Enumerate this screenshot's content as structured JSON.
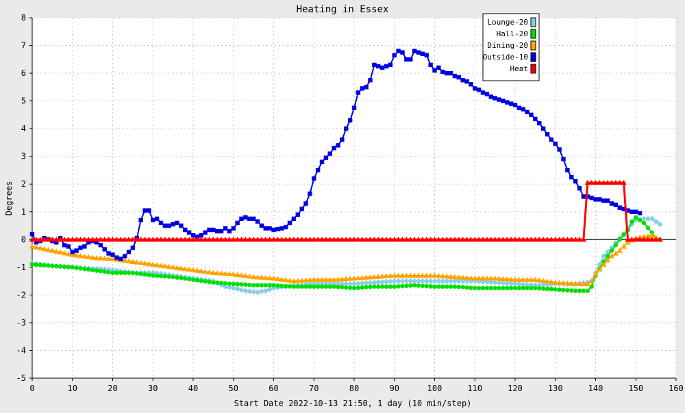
{
  "chart_data": {
    "type": "line",
    "title": "Heating in Essex",
    "xlabel": "Start Date 2022-10-13 21:50, 1 day (10 min/step)",
    "ylabel": "Degrees",
    "xlim": [
      0,
      160
    ],
    "ylim": [
      -5,
      8
    ],
    "xticks": [
      0,
      10,
      20,
      30,
      40,
      50,
      60,
      70,
      80,
      90,
      100,
      110,
      120,
      130,
      140,
      150,
      160
    ],
    "yticks": [
      -5,
      -4,
      -3,
      -2,
      -1,
      0,
      1,
      2,
      3,
      4,
      5,
      6,
      7,
      8
    ],
    "grid": true,
    "legend_position": "top-right",
    "background_color": "#eaeaea",
    "plot_background": "#ffffff",
    "series": [
      {
        "name": "Lounge-20",
        "color": "#87ceeb",
        "marker": "diamond",
        "points": [
          [
            0,
            -0.85
          ],
          [
            5,
            -0.95
          ],
          [
            10,
            -1.0
          ],
          [
            15,
            -1.05
          ],
          [
            20,
            -1.1
          ],
          [
            25,
            -1.2
          ],
          [
            30,
            -1.2
          ],
          [
            35,
            -1.3
          ],
          [
            40,
            -1.4
          ],
          [
            45,
            -1.5
          ],
          [
            48,
            -1.7
          ],
          [
            50,
            -1.75
          ],
          [
            53,
            -1.85
          ],
          [
            56,
            -1.9
          ],
          [
            58,
            -1.85
          ],
          [
            60,
            -1.75
          ],
          [
            63,
            -1.7
          ],
          [
            66,
            -1.65
          ],
          [
            70,
            -1.6
          ],
          [
            75,
            -1.6
          ],
          [
            80,
            -1.6
          ],
          [
            85,
            -1.55
          ],
          [
            90,
            -1.5
          ],
          [
            95,
            -1.5
          ],
          [
            100,
            -1.5
          ],
          [
            105,
            -1.5
          ],
          [
            110,
            -1.5
          ],
          [
            115,
            -1.55
          ],
          [
            120,
            -1.6
          ],
          [
            125,
            -1.65
          ],
          [
            130,
            -1.6
          ],
          [
            135,
            -1.6
          ],
          [
            138,
            -1.55
          ],
          [
            139,
            -1.5
          ],
          [
            140,
            -1.2
          ],
          [
            142,
            -0.6
          ],
          [
            144,
            -0.3
          ],
          [
            146,
            0.05
          ],
          [
            148,
            0.35
          ],
          [
            149,
            0.55
          ],
          [
            150,
            0.7
          ],
          [
            152,
            0.75
          ],
          [
            154,
            0.75
          ],
          [
            156,
            0.55
          ]
        ]
      },
      {
        "name": "Hall-20",
        "color": "#00e000",
        "marker": "circle",
        "points": [
          [
            0,
            -0.9
          ],
          [
            5,
            -0.95
          ],
          [
            10,
            -1.0
          ],
          [
            15,
            -1.1
          ],
          [
            20,
            -1.2
          ],
          [
            25,
            -1.2
          ],
          [
            30,
            -1.3
          ],
          [
            35,
            -1.35
          ],
          [
            40,
            -1.45
          ],
          [
            45,
            -1.55
          ],
          [
            50,
            -1.6
          ],
          [
            55,
            -1.65
          ],
          [
            60,
            -1.65
          ],
          [
            65,
            -1.7
          ],
          [
            70,
            -1.7
          ],
          [
            75,
            -1.7
          ],
          [
            80,
            -1.75
          ],
          [
            85,
            -1.7
          ],
          [
            90,
            -1.7
          ],
          [
            95,
            -1.65
          ],
          [
            100,
            -1.7
          ],
          [
            105,
            -1.7
          ],
          [
            110,
            -1.75
          ],
          [
            115,
            -1.75
          ],
          [
            120,
            -1.75
          ],
          [
            125,
            -1.75
          ],
          [
            130,
            -1.8
          ],
          [
            135,
            -1.85
          ],
          [
            138,
            -1.85
          ],
          [
            139,
            -1.7
          ],
          [
            140,
            -1.3
          ],
          [
            142,
            -0.8
          ],
          [
            144,
            -0.4
          ],
          [
            146,
            0.0
          ],
          [
            148,
            0.35
          ],
          [
            149,
            0.65
          ],
          [
            150,
            0.8
          ],
          [
            152,
            0.6
          ],
          [
            154,
            0.25
          ],
          [
            155,
            0.05
          ],
          [
            156,
            0.0
          ]
        ]
      },
      {
        "name": "Dining-20",
        "color": "#ffa500",
        "marker": "triangle",
        "points": [
          [
            0,
            -0.25
          ],
          [
            5,
            -0.4
          ],
          [
            10,
            -0.55
          ],
          [
            15,
            -0.65
          ],
          [
            20,
            -0.7
          ],
          [
            25,
            -0.8
          ],
          [
            30,
            -0.9
          ],
          [
            35,
            -1.0
          ],
          [
            40,
            -1.1
          ],
          [
            45,
            -1.2
          ],
          [
            50,
            -1.25
          ],
          [
            55,
            -1.35
          ],
          [
            60,
            -1.4
          ],
          [
            65,
            -1.5
          ],
          [
            70,
            -1.45
          ],
          [
            75,
            -1.45
          ],
          [
            80,
            -1.4
          ],
          [
            85,
            -1.35
          ],
          [
            90,
            -1.3
          ],
          [
            95,
            -1.3
          ],
          [
            100,
            -1.3
          ],
          [
            105,
            -1.35
          ],
          [
            110,
            -1.4
          ],
          [
            115,
            -1.4
          ],
          [
            120,
            -1.45
          ],
          [
            125,
            -1.45
          ],
          [
            130,
            -1.55
          ],
          [
            135,
            -1.6
          ],
          [
            138,
            -1.6
          ],
          [
            139,
            -1.5
          ],
          [
            140,
            -1.25
          ],
          [
            142,
            -0.9
          ],
          [
            144,
            -0.6
          ],
          [
            146,
            -0.4
          ],
          [
            148,
            -0.1
          ],
          [
            150,
            0.05
          ],
          [
            152,
            0.1
          ],
          [
            154,
            0.15
          ],
          [
            156,
            0.0
          ]
        ]
      },
      {
        "name": "Outside-10",
        "color": "#0000e0",
        "marker": "square",
        "points": [
          [
            0,
            0.2
          ],
          [
            1,
            -0.1
          ],
          [
            2,
            -0.05
          ],
          [
            3,
            0.05
          ],
          [
            4,
            0.0
          ],
          [
            5,
            -0.05
          ],
          [
            6,
            -0.1
          ],
          [
            7,
            0.05
          ],
          [
            8,
            -0.2
          ],
          [
            9,
            -0.25
          ],
          [
            10,
            -0.45
          ],
          [
            11,
            -0.4
          ],
          [
            12,
            -0.3
          ],
          [
            13,
            -0.25
          ],
          [
            14,
            -0.1
          ],
          [
            15,
            -0.05
          ],
          [
            16,
            -0.1
          ],
          [
            17,
            -0.2
          ],
          [
            18,
            -0.35
          ],
          [
            19,
            -0.5
          ],
          [
            20,
            -0.55
          ],
          [
            21,
            -0.65
          ],
          [
            22,
            -0.7
          ],
          [
            23,
            -0.6
          ],
          [
            24,
            -0.45
          ],
          [
            25,
            -0.3
          ],
          [
            26,
            0.05
          ],
          [
            27,
            0.7
          ],
          [
            28,
            1.05
          ],
          [
            29,
            1.05
          ],
          [
            30,
            0.7
          ],
          [
            31,
            0.75
          ],
          [
            32,
            0.6
          ],
          [
            33,
            0.5
          ],
          [
            34,
            0.5
          ],
          [
            35,
            0.55
          ],
          [
            36,
            0.6
          ],
          [
            37,
            0.5
          ],
          [
            38,
            0.35
          ],
          [
            39,
            0.25
          ],
          [
            40,
            0.15
          ],
          [
            41,
            0.1
          ],
          [
            42,
            0.15
          ],
          [
            43,
            0.25
          ],
          [
            44,
            0.35
          ],
          [
            45,
            0.35
          ],
          [
            46,
            0.3
          ],
          [
            47,
            0.3
          ],
          [
            48,
            0.4
          ],
          [
            49,
            0.3
          ],
          [
            50,
            0.4
          ],
          [
            51,
            0.6
          ],
          [
            52,
            0.75
          ],
          [
            53,
            0.8
          ],
          [
            54,
            0.75
          ],
          [
            55,
            0.75
          ],
          [
            56,
            0.65
          ],
          [
            57,
            0.5
          ],
          [
            58,
            0.4
          ],
          [
            59,
            0.4
          ],
          [
            60,
            0.35
          ],
          [
            62,
            0.4
          ],
          [
            63,
            0.45
          ],
          [
            64,
            0.6
          ],
          [
            65,
            0.75
          ],
          [
            66,
            0.9
          ],
          [
            67,
            1.1
          ],
          [
            68,
            1.3
          ],
          [
            69,
            1.65
          ],
          [
            70,
            2.2
          ],
          [
            71,
            2.5
          ],
          [
            72,
            2.8
          ],
          [
            73,
            2.95
          ],
          [
            74,
            3.1
          ],
          [
            75,
            3.3
          ],
          [
            76,
            3.4
          ],
          [
            77,
            3.6
          ],
          [
            78,
            4.0
          ],
          [
            79,
            4.3
          ],
          [
            80,
            4.75
          ],
          [
            81,
            5.3
          ],
          [
            82,
            5.45
          ],
          [
            83,
            5.5
          ],
          [
            84,
            5.75
          ],
          [
            85,
            6.3
          ],
          [
            86,
            6.25
          ],
          [
            87,
            6.2
          ],
          [
            88,
            6.25
          ],
          [
            89,
            6.3
          ],
          [
            90,
            6.65
          ],
          [
            91,
            6.8
          ],
          [
            92,
            6.75
          ],
          [
            93,
            6.5
          ],
          [
            94,
            6.5
          ],
          [
            95,
            6.8
          ],
          [
            96,
            6.75
          ],
          [
            97,
            6.7
          ],
          [
            98,
            6.65
          ],
          [
            99,
            6.3
          ],
          [
            100,
            6.1
          ],
          [
            101,
            6.2
          ],
          [
            102,
            6.05
          ],
          [
            103,
            6.0
          ],
          [
            104,
            6.0
          ],
          [
            105,
            5.9
          ],
          [
            106,
            5.85
          ],
          [
            107,
            5.75
          ],
          [
            108,
            5.7
          ],
          [
            109,
            5.6
          ],
          [
            110,
            5.45
          ],
          [
            111,
            5.4
          ],
          [
            112,
            5.3
          ],
          [
            113,
            5.25
          ],
          [
            114,
            5.15
          ],
          [
            115,
            5.1
          ],
          [
            116,
            5.05
          ],
          [
            117,
            5.0
          ],
          [
            118,
            4.95
          ],
          [
            119,
            4.9
          ],
          [
            120,
            4.85
          ],
          [
            121,
            4.75
          ],
          [
            122,
            4.7
          ],
          [
            123,
            4.6
          ],
          [
            124,
            4.5
          ],
          [
            125,
            4.35
          ],
          [
            126,
            4.2
          ],
          [
            127,
            4.0
          ],
          [
            128,
            3.8
          ],
          [
            129,
            3.6
          ],
          [
            130,
            3.45
          ],
          [
            131,
            3.25
          ],
          [
            132,
            2.9
          ],
          [
            133,
            2.5
          ],
          [
            134,
            2.25
          ],
          [
            135,
            2.1
          ],
          [
            136,
            1.85
          ],
          [
            137,
            1.55
          ],
          [
            138,
            1.55
          ],
          [
            139,
            1.5
          ],
          [
            140,
            1.45
          ],
          [
            141,
            1.45
          ],
          [
            142,
            1.4
          ],
          [
            143,
            1.4
          ],
          [
            144,
            1.3
          ],
          [
            145,
            1.25
          ],
          [
            146,
            1.15
          ],
          [
            147,
            1.1
          ],
          [
            148,
            1.05
          ],
          [
            149,
            1.0
          ],
          [
            150,
            1.0
          ],
          [
            151,
            0.95
          ]
        ]
      },
      {
        "name": "Heat",
        "color": "#ff0000",
        "marker": "triangle",
        "points": [
          [
            0,
            0
          ],
          [
            137,
            0
          ],
          [
            138,
            2.05
          ],
          [
            147,
            2.05
          ],
          [
            148,
            0
          ],
          [
            156,
            0
          ]
        ]
      }
    ]
  }
}
